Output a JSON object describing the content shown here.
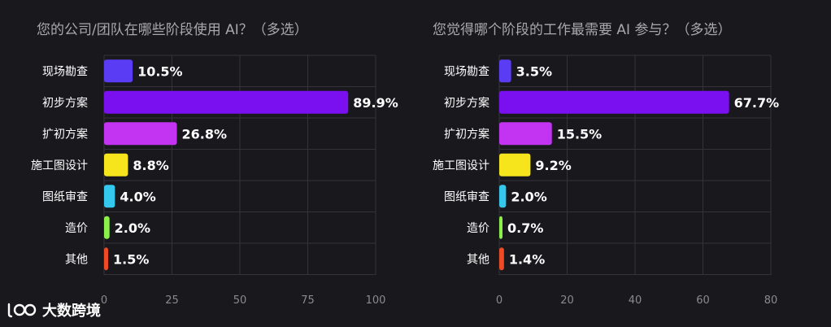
{
  "chart_data": [
    {
      "type": "bar",
      "orientation": "horizontal",
      "title": "您的公司/团队在哪些阶段使用 AI？（多选）",
      "categories": [
        "现场勘查",
        "初步方案",
        "扩初方案",
        "施工图设计",
        "图纸审查",
        "造价",
        "其他"
      ],
      "values": [
        10.5,
        89.9,
        26.8,
        8.8,
        4.0,
        2.0,
        1.5
      ],
      "value_labels": [
        "10.5%",
        "89.9%",
        "26.8%",
        "8.8%",
        "4.0%",
        "2.0%",
        "1.5%"
      ],
      "colors": [
        "#5b3cf5",
        "#7a10f0",
        "#c234f2",
        "#f6e51c",
        "#34c8ec",
        "#8cf04a",
        "#ef4a24"
      ],
      "xlim": [
        0,
        100
      ],
      "xticks": [
        0,
        25,
        50,
        75,
        100
      ],
      "grid": true
    },
    {
      "type": "bar",
      "orientation": "horizontal",
      "title": "您觉得哪个阶段的工作最需要 AI 参与？（多选）",
      "categories": [
        "现场勘查",
        "初步方案",
        "扩初方案",
        "施工图设计",
        "图纸审查",
        "造价",
        "其他"
      ],
      "values": [
        3.5,
        67.7,
        15.5,
        9.2,
        2.0,
        0.7,
        1.4
      ],
      "value_labels": [
        "3.5%",
        "67.7%",
        "15.5%",
        "9.2%",
        "2.0%",
        "0.7%",
        "1.4%"
      ],
      "colors": [
        "#5b3cf5",
        "#7a10f0",
        "#c234f2",
        "#f6e51c",
        "#34c8ec",
        "#8cf04a",
        "#ef4a24"
      ],
      "xlim": [
        0,
        80
      ],
      "xticks": [
        0,
        20,
        40,
        60,
        80
      ],
      "grid": true
    }
  ],
  "brand": {
    "name": "大数跨境",
    "logo_icon": "dskj-logo-icon"
  },
  "colors": {
    "background": "#19181d",
    "grid": "#34333a",
    "text": "#ffffff",
    "tick": "#8a8a90",
    "title": "#a8a8ae"
  }
}
